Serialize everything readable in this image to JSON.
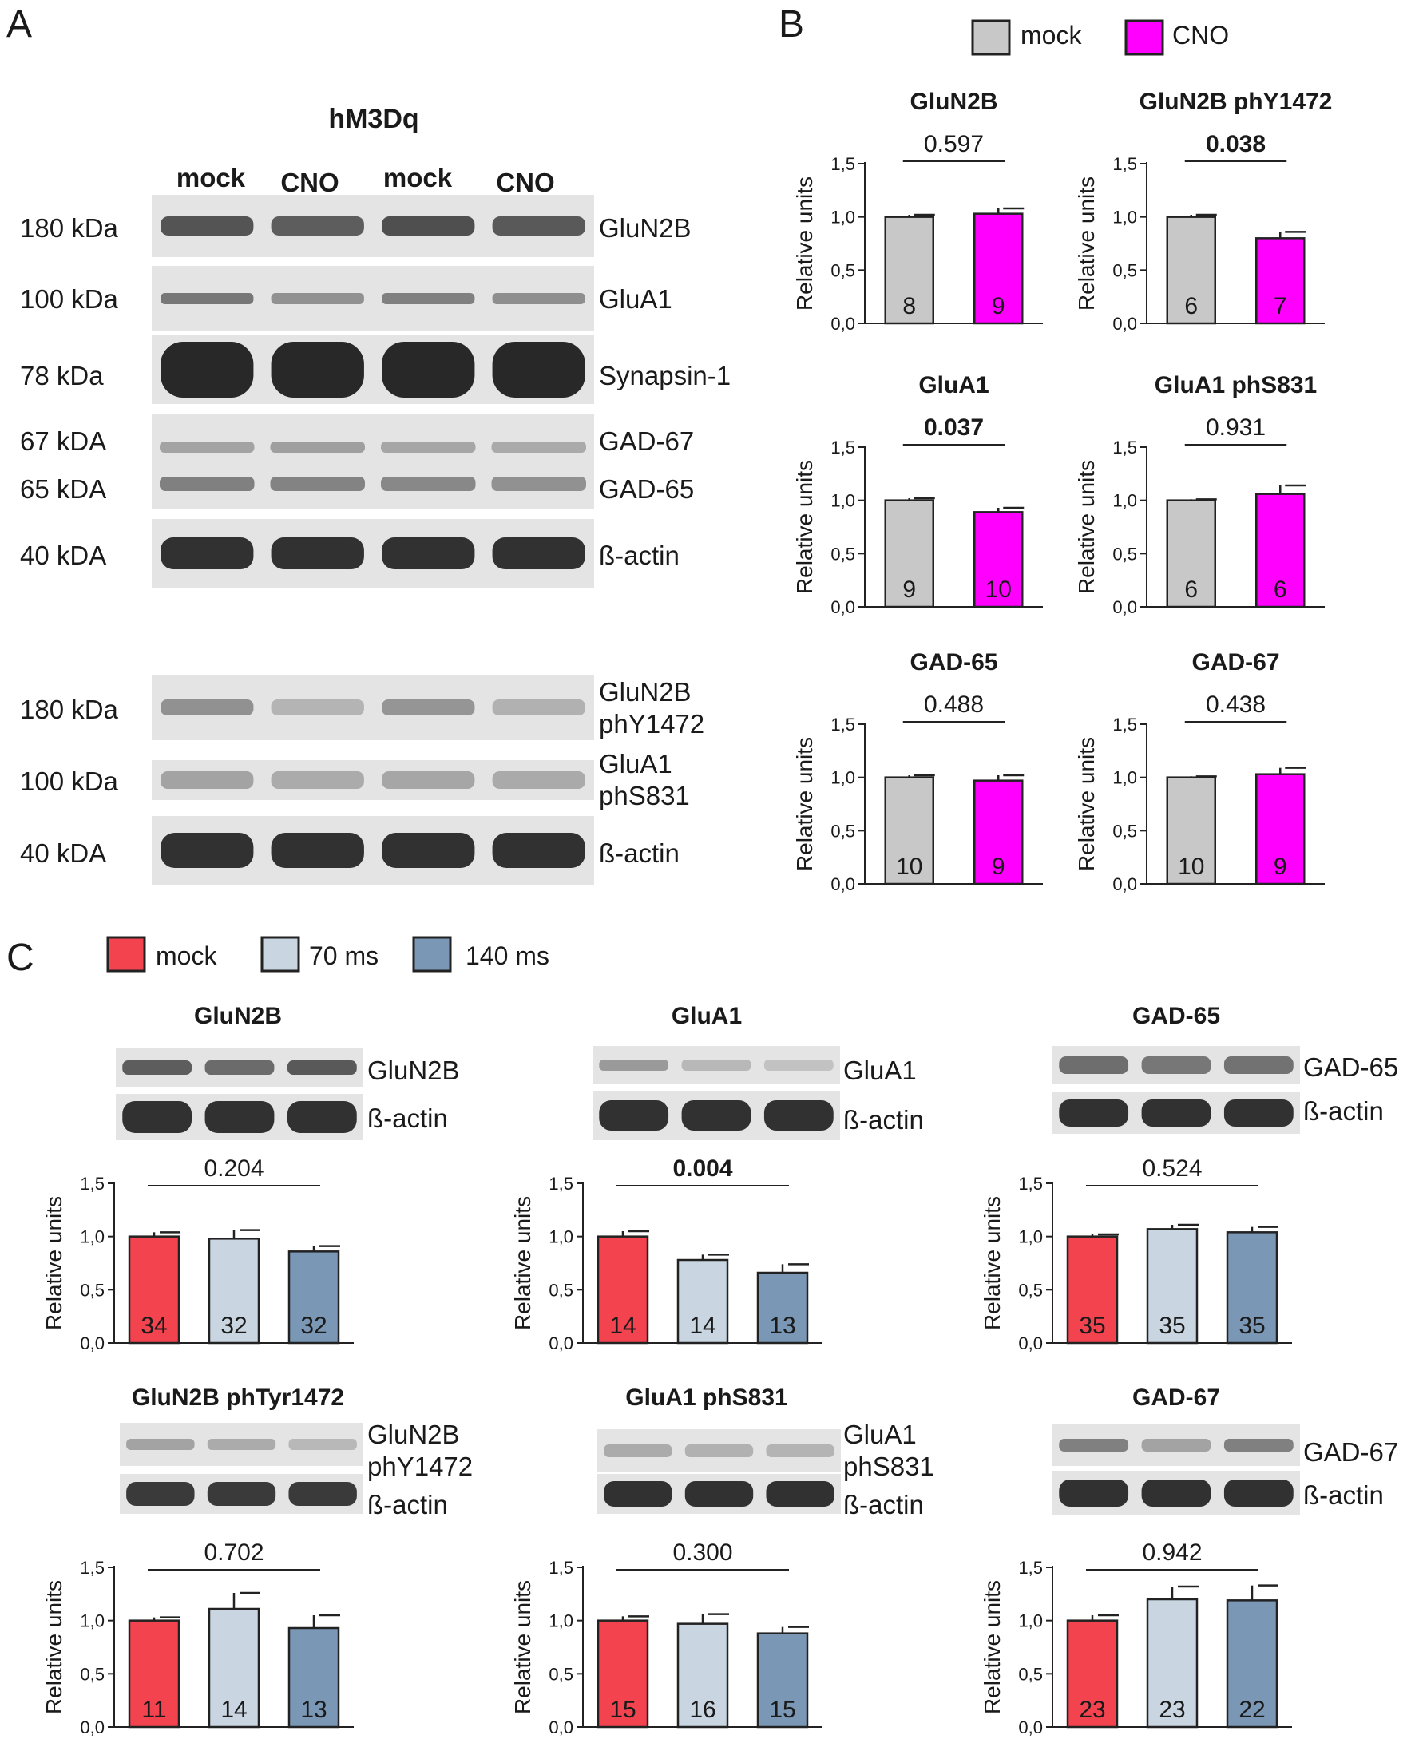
{
  "panels": {
    "A": "A",
    "B": "B",
    "C": "C"
  },
  "colors": {
    "mock_b": "#c8c8c8",
    "cno": "#ff00ff",
    "mock_c": "#f2434f",
    "ms70": "#c9d6e1",
    "ms140": "#7a97b5",
    "blot_bg": "#e4e4e4",
    "band": "#3a3a3a"
  },
  "panelA": {
    "construct": "hM3Dq",
    "lanes": [
      "mock",
      "CNO",
      "mock",
      "CNO"
    ],
    "rows": [
      {
        "mw": "180 kDa",
        "label": "GluN2B",
        "intensity": [
          0.75,
          0.7,
          0.78,
          0.72
        ]
      },
      {
        "mw": "100 kDa",
        "label": "GluA1",
        "intensity": [
          0.55,
          0.4,
          0.5,
          0.42
        ]
      },
      {
        "mw": "78 kDa",
        "label": "Synapsin-1",
        "intensity": [
          1.0,
          1.0,
          1.0,
          1.0
        ]
      },
      {
        "mw": "67 kDA",
        "mw2": "65 kDA",
        "label": "GAD-67",
        "label2": "GAD-65",
        "intensity": [
          0.3,
          0.32,
          0.28,
          0.26
        ],
        "intensity2": [
          0.5,
          0.48,
          0.45,
          0.4
        ]
      },
      {
        "mw": "40 kDA",
        "label": "ß-actin",
        "intensity": [
          0.95,
          0.95,
          0.95,
          0.95
        ]
      },
      {
        "mw": "180 kDa",
        "label": "GluN2B",
        "label2": "phY1472",
        "intensity": [
          0.4,
          0.2,
          0.38,
          0.22
        ]
      },
      {
        "mw": "100 kDa",
        "label": "GluA1",
        "label2": "phS831",
        "intensity": [
          0.3,
          0.25,
          0.28,
          0.26
        ]
      },
      {
        "mw": "40 kDA",
        "label": "ß-actin",
        "intensity": [
          0.95,
          0.95,
          0.95,
          0.95
        ]
      }
    ]
  },
  "legendB": [
    "mock",
    "CNO"
  ],
  "legendC": [
    "mock",
    "70 ms",
    "140 ms"
  ],
  "blotsC": [
    {
      "label": "GluN2B",
      "intensity": [
        0.7,
        0.62,
        0.72
      ]
    },
    {
      "label": "ß-actin",
      "intensity": [
        0.95,
        0.95,
        0.95
      ]
    },
    {
      "label": "GluA1",
      "intensity": [
        0.35,
        0.18,
        0.12
      ]
    },
    {
      "label": "ß-actin",
      "intensity": [
        0.95,
        0.95,
        0.95
      ]
    },
    {
      "label": "GAD-65",
      "intensity": [
        0.6,
        0.55,
        0.58
      ]
    },
    {
      "label": "ß-actin",
      "intensity": [
        0.95,
        0.95,
        0.95
      ]
    },
    {
      "label": "GluN2B",
      "label2": "phY1472",
      "intensity": [
        0.3,
        0.25,
        0.18
      ]
    },
    {
      "label": "ß-actin",
      "intensity": [
        0.9,
        0.9,
        0.9
      ]
    },
    {
      "label": "GluA1",
      "label2": "phS831",
      "intensity": [
        0.25,
        0.22,
        0.2
      ]
    },
    {
      "label": "ß-actin",
      "intensity": [
        0.95,
        0.95,
        0.95
      ]
    },
    {
      "label": "GAD-67",
      "intensity": [
        0.5,
        0.3,
        0.5
      ]
    },
    {
      "label": "ß-actin",
      "intensity": [
        0.95,
        0.95,
        0.95
      ]
    }
  ],
  "chart_data": [
    {
      "type": "bar",
      "panel": "B",
      "title": "GluN2B",
      "ylabel": "Relative units",
      "ylim": [
        0,
        1.5
      ],
      "yticks": [
        "0,0",
        "0,5",
        "1,0",
        "1,5"
      ],
      "categories": [
        "mock",
        "CNO"
      ],
      "values": [
        1.0,
        1.03
      ],
      "errors": [
        0.02,
        0.05
      ],
      "n": [
        "8",
        "9"
      ],
      "pvalue": "0.597",
      "p_bold": false
    },
    {
      "type": "bar",
      "panel": "B",
      "title": "GluN2B phY1472",
      "ylabel": "Relative units",
      "ylim": [
        0,
        1.5
      ],
      "yticks": [
        "0,0",
        "0,5",
        "1,0",
        "1,5"
      ],
      "categories": [
        "mock",
        "CNO"
      ],
      "values": [
        1.0,
        0.8
      ],
      "errors": [
        0.02,
        0.06
      ],
      "n": [
        "6",
        "7"
      ],
      "pvalue": "0.038",
      "p_bold": true
    },
    {
      "type": "bar",
      "panel": "B",
      "title": "GluA1",
      "ylabel": "Relative units",
      "ylim": [
        0,
        1.5
      ],
      "yticks": [
        "0,0",
        "0,5",
        "1,0",
        "1,5"
      ],
      "categories": [
        "mock",
        "CNO"
      ],
      "values": [
        1.0,
        0.89
      ],
      "errors": [
        0.02,
        0.04
      ],
      "n": [
        "9",
        "10"
      ],
      "pvalue": "0.037",
      "p_bold": true
    },
    {
      "type": "bar",
      "panel": "B",
      "title": "GluA1 phS831",
      "ylabel": "Relative units",
      "ylim": [
        0,
        1.5
      ],
      "yticks": [
        "0,0",
        "0,5",
        "1,0",
        "1,5"
      ],
      "categories": [
        "mock",
        "CNO"
      ],
      "values": [
        1.0,
        1.06
      ],
      "errors": [
        0.01,
        0.08
      ],
      "n": [
        "6",
        "6"
      ],
      "pvalue": "0.931",
      "p_bold": false
    },
    {
      "type": "bar",
      "panel": "B",
      "title": "GAD-65",
      "ylabel": "Relative units",
      "ylim": [
        0,
        1.5
      ],
      "yticks": [
        "0,0",
        "0,5",
        "1,0",
        "1,5"
      ],
      "categories": [
        "mock",
        "CNO"
      ],
      "values": [
        1.0,
        0.97
      ],
      "errors": [
        0.02,
        0.05
      ],
      "n": [
        "10",
        "9"
      ],
      "pvalue": "0.488",
      "p_bold": false
    },
    {
      "type": "bar",
      "panel": "B",
      "title": "GAD-67",
      "ylabel": "Relative units",
      "ylim": [
        0,
        1.5
      ],
      "yticks": [
        "0,0",
        "0,5",
        "1,0",
        "1,5"
      ],
      "categories": [
        "mock",
        "CNO"
      ],
      "values": [
        1.0,
        1.03
      ],
      "errors": [
        0.01,
        0.06
      ],
      "n": [
        "10",
        "9"
      ],
      "pvalue": "0.438",
      "p_bold": false
    },
    {
      "type": "bar",
      "panel": "C",
      "title": "GluN2B",
      "ylabel": "Relative units",
      "ylim": [
        0,
        1.5
      ],
      "yticks": [
        "0,0",
        "0,5",
        "1,0",
        "1,5"
      ],
      "categories": [
        "mock",
        "70 ms",
        "140 ms"
      ],
      "values": [
        1.0,
        0.98,
        0.86
      ],
      "errors": [
        0.04,
        0.08,
        0.05
      ],
      "n": [
        "34",
        "32",
        "32"
      ],
      "pvalue": "0.204",
      "p_bold": false
    },
    {
      "type": "bar",
      "panel": "C",
      "title": "GluA1",
      "ylabel": "Relative units",
      "ylim": [
        0,
        1.5
      ],
      "yticks": [
        "0,0",
        "0,5",
        "1,0",
        "1,5"
      ],
      "categories": [
        "mock",
        "70 ms",
        "140 ms"
      ],
      "values": [
        1.0,
        0.78,
        0.66
      ],
      "errors": [
        0.05,
        0.05,
        0.08
      ],
      "n": [
        "14",
        "14",
        "13"
      ],
      "pvalue": "0.004",
      "p_bold": true
    },
    {
      "type": "bar",
      "panel": "C",
      "title": "GAD-65",
      "ylabel": "Relative units",
      "ylim": [
        0,
        1.5
      ],
      "yticks": [
        "0,0",
        "0,5",
        "1,0",
        "1,5"
      ],
      "categories": [
        "mock",
        "70 ms",
        "140 ms"
      ],
      "values": [
        1.0,
        1.07,
        1.04
      ],
      "errors": [
        0.02,
        0.04,
        0.05
      ],
      "n": [
        "35",
        "35",
        "35"
      ],
      "pvalue": "0.524",
      "p_bold": false
    },
    {
      "type": "bar",
      "panel": "C",
      "title": "GluN2B phTyr1472",
      "ylabel": "Relative units",
      "ylim": [
        0,
        1.5
      ],
      "yticks": [
        "0,0",
        "0,5",
        "1,0",
        "1,5"
      ],
      "categories": [
        "mock",
        "70 ms",
        "140 ms"
      ],
      "values": [
        1.0,
        1.11,
        0.93
      ],
      "errors": [
        0.03,
        0.15,
        0.12
      ],
      "n": [
        "11",
        "14",
        "13"
      ],
      "pvalue": "0.702",
      "p_bold": false
    },
    {
      "type": "bar",
      "panel": "C",
      "title": "GluA1 phS831",
      "ylabel": "Relative units",
      "ylim": [
        0,
        1.5
      ],
      "yticks": [
        "0,0",
        "0,5",
        "1,0",
        "1,5"
      ],
      "categories": [
        "mock",
        "70 ms",
        "140 ms"
      ],
      "values": [
        1.0,
        0.97,
        0.88
      ],
      "errors": [
        0.04,
        0.09,
        0.06
      ],
      "n": [
        "15",
        "16",
        "15"
      ],
      "pvalue": "0.300",
      "p_bold": false
    },
    {
      "type": "bar",
      "panel": "C",
      "title": "GAD-67",
      "ylabel": "Relative units",
      "ylim": [
        0,
        1.5
      ],
      "yticks": [
        "0,0",
        "0,5",
        "1,0",
        "1,5"
      ],
      "categories": [
        "mock",
        "70 ms",
        "140 ms"
      ],
      "values": [
        1.0,
        1.2,
        1.19
      ],
      "errors": [
        0.05,
        0.12,
        0.14
      ],
      "n": [
        "23",
        "23",
        "22"
      ],
      "pvalue": "0.942",
      "p_bold": false
    }
  ]
}
